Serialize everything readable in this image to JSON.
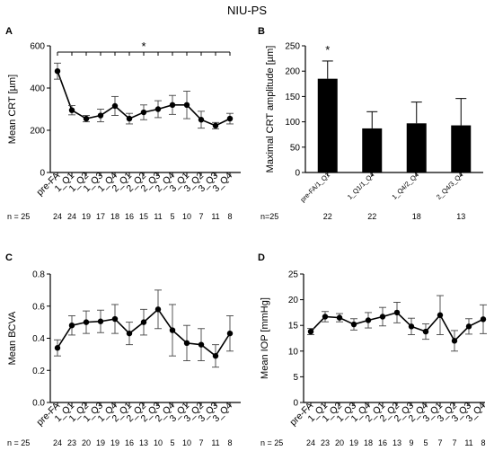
{
  "figure_title": "NIU-PS",
  "chart_data": [
    {
      "panel_label": "A",
      "type": "line",
      "ylabel": "Mean CRT [µm]",
      "ylim": [
        0,
        600
      ],
      "yticks": [
        0,
        200,
        400,
        600
      ],
      "categories": [
        "pre-FA",
        "1_Q1",
        "1_Q2",
        "1_Q3",
        "1_Q4",
        "2_Q1",
        "2_Q2",
        "2_Q3",
        "2_Q4",
        "3_Q1",
        "3_Q2",
        "3_Q3",
        "3_Q4"
      ],
      "values": [
        480,
        295,
        255,
        270,
        315,
        255,
        285,
        300,
        320,
        320,
        250,
        222,
        255
      ],
      "error": [
        38,
        22,
        15,
        30,
        45,
        25,
        35,
        40,
        45,
        65,
        40,
        15,
        25
      ],
      "significance_marker": "*",
      "n_prefix": "n = 25",
      "n_values": [
        "24",
        "24",
        "19",
        "17",
        "18",
        "16",
        "15",
        "11",
        "5",
        "10",
        "7",
        "11",
        "8"
      ]
    },
    {
      "panel_label": "B",
      "type": "bar",
      "ylabel": "Maximal CRT amplitude [µm]",
      "ylim": [
        0,
        250
      ],
      "yticks": [
        0,
        50,
        100,
        150,
        200,
        250
      ],
      "categories": [
        "pre-FA/1_Q1",
        "1_Q1/1_Q4",
        "1_Q4/2_Q4",
        "2_Q4/3_Q4"
      ],
      "values": [
        185,
        87,
        97,
        93
      ],
      "error": [
        35,
        33,
        42,
        53
      ],
      "significance_marker": "*",
      "n_prefix": "n=25",
      "n_values": [
        "22",
        "22",
        "18",
        "13"
      ]
    },
    {
      "panel_label": "C",
      "type": "line",
      "ylabel": "Mean BCVA",
      "ylim": [
        0,
        0.8
      ],
      "yticks": [
        0,
        0.2,
        0.4,
        0.6,
        0.8
      ],
      "ytick_labels": [
        "0.0",
        "0.2",
        "0.4",
        "0.6",
        "0.8"
      ],
      "categories": [
        "pre-FA",
        "1_Q1",
        "1_Q2",
        "1_Q3",
        "1_Q4",
        "2_Q1",
        "2_Q2",
        "2_Q3",
        "2_Q4",
        "3_Q1",
        "3_Q2",
        "3_Q3",
        "3_Q4"
      ],
      "values": [
        0.34,
        0.48,
        0.5,
        0.505,
        0.52,
        0.43,
        0.5,
        0.58,
        0.45,
        0.37,
        0.36,
        0.29,
        0.43
      ],
      "error": [
        0.05,
        0.06,
        0.07,
        0.07,
        0.09,
        0.07,
        0.08,
        0.12,
        0.16,
        0.11,
        0.1,
        0.07,
        0.11
      ],
      "n_prefix": "n = 25",
      "n_values": [
        "24",
        "23",
        "20",
        "19",
        "19",
        "16",
        "13",
        "10",
        "5",
        "10",
        "7",
        "11",
        "8"
      ]
    },
    {
      "panel_label": "D",
      "type": "line",
      "ylabel": "Mean IOP [mmHg]",
      "ylim": [
        0,
        25
      ],
      "yticks": [
        0,
        5,
        10,
        15,
        20,
        25
      ],
      "categories": [
        "pre-FA",
        "1_Q1",
        "1_Q2",
        "1_Q3",
        "1_Q4",
        "2_Q1",
        "2_Q2",
        "2_Q3",
        "2_Q4",
        "3_Q1",
        "3_Q2",
        "3_Q3",
        "3_Q4"
      ],
      "values": [
        13.8,
        16.7,
        16.5,
        15.2,
        16.0,
        16.7,
        17.5,
        14.8,
        13.8,
        17.0,
        12.0,
        14.8,
        16.2
      ],
      "error": [
        0.6,
        1.0,
        0.8,
        1.1,
        1.5,
        1.8,
        2.0,
        1.6,
        1.5,
        3.8,
        2.0,
        1.5,
        2.8
      ],
      "n_prefix": "n = 25",
      "n_values": [
        "24",
        "23",
        "20",
        "19",
        "18",
        "16",
        "13",
        "9",
        "5",
        "7",
        "7",
        "11",
        "8"
      ]
    }
  ]
}
